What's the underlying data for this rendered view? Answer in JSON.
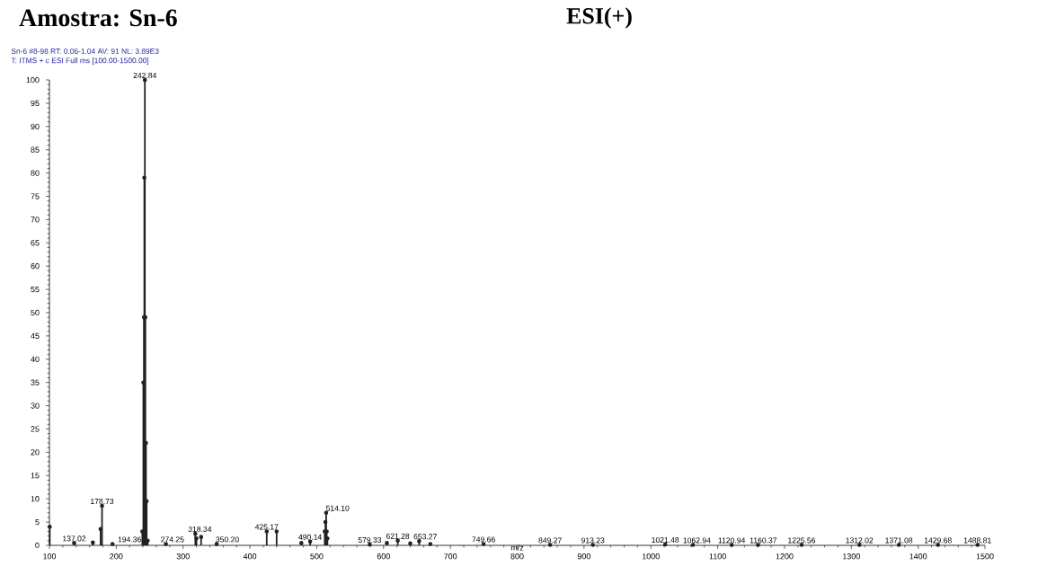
{
  "chart_data": {
    "type": "lollipop",
    "marker": "circle",
    "title": "Amostra: Sn-6",
    "subtitle": "ESI(+)",
    "xlabel": "m/z",
    "x": [
      100.5,
      137.02,
      165,
      176.5,
      178.73,
      194.36,
      239,
      240.5,
      241.5,
      242.0,
      242.84,
      243.5,
      244.5,
      245.5,
      247,
      274.25,
      318.34,
      320,
      327,
      350.2,
      425.17,
      440,
      477,
      490.14,
      512,
      513,
      514.1,
      515,
      516,
      579.33,
      605,
      621.28,
      640,
      653.27,
      670,
      749.66,
      849.27,
      913.23,
      1021.48,
      1062.94,
      1120.94,
      1160.37,
      1225.56,
      1312.02,
      1371.08,
      1429.68,
      1488.81
    ],
    "values": [
      4,
      0.5,
      0.6,
      3.5,
      8.5,
      0.3,
      3,
      35,
      49,
      79,
      100,
      49,
      22,
      9.5,
      1,
      0.3,
      2.5,
      1.5,
      1.8,
      0.3,
      3,
      3,
      0.5,
      0.8,
      3,
      5,
      7,
      3,
      1.5,
      0.2,
      0.5,
      1,
      0.4,
      0.9,
      0.3,
      0.3,
      0.1,
      0.1,
      0.2,
      0.1,
      0.1,
      0.1,
      0.1,
      0.1,
      0.1,
      0.1,
      0.1
    ],
    "color": "#222222",
    "xlim": [
      100,
      1500
    ],
    "xticks": [
      100,
      200,
      300,
      400,
      500,
      600,
      700,
      800,
      900,
      1000,
      1100,
      1200,
      1300,
      1400,
      1500
    ],
    "ylim": [
      0,
      100
    ],
    "yticks": [
      0,
      5,
      10,
      15,
      20,
      25,
      30,
      35,
      40,
      45,
      50,
      55,
      60,
      65,
      70,
      75,
      80,
      85,
      90,
      95,
      100
    ],
    "annotations": [
      "Sn-6 #8-98  RT: 0.06-1.04  AV: 91  NL: 3.89E3",
      "T: ITMS + c ESI Full ms [100.00-1500.00]",
      {
        "text": "137.02",
        "x": 137.02,
        "y": 0.5
      },
      {
        "text": "178.73",
        "x": 178.73,
        "y": 8.5
      },
      {
        "text": "194.36",
        "x": 194.36,
        "y": 0.3
      },
      {
        "text": "242.84",
        "x": 242.84,
        "y": 100
      },
      {
        "text": "274.25",
        "x": 274.25,
        "y": 0.3
      },
      {
        "text": "318.34",
        "x": 318.34,
        "y": 2.5
      },
      {
        "text": "350.20",
        "x": 350.2,
        "y": 0.3
      },
      {
        "text": "425.17",
        "x": 425.17,
        "y": 3
      },
      {
        "text": "490.14",
        "x": 490.14,
        "y": 0.8
      },
      {
        "text": "514.10",
        "x": 514.1,
        "y": 7
      },
      {
        "text": "579.33",
        "x": 579.33,
        "y": 0.2
      },
      {
        "text": "621.28",
        "x": 621.28,
        "y": 1
      },
      {
        "text": "653.27",
        "x": 653.27,
        "y": 0.9
      },
      {
        "text": "749.66",
        "x": 749.66,
        "y": 0.3
      },
      {
        "text": "849.27",
        "x": 849.27,
        "y": 0.1
      },
      {
        "text": "913.23",
        "x": 913.23,
        "y": 0.1
      },
      {
        "text": "1021.48",
        "x": 1021.48,
        "y": 0.2
      },
      {
        "text": "1062.94",
        "x": 1062.94,
        "y": 0.1
      },
      {
        "text": "1120.94",
        "x": 1120.94,
        "y": 0.1
      },
      {
        "text": "1160.37",
        "x": 1160.37,
        "y": 0.1
      },
      {
        "text": "1225.56",
        "x": 1225.56,
        "y": 0.1
      },
      {
        "text": "1312.02",
        "x": 1312.02,
        "y": 0.1
      },
      {
        "text": "1371.08",
        "x": 1371.08,
        "y": 0.1
      },
      {
        "text": "1429.68",
        "x": 1429.68,
        "y": 0.1
      },
      {
        "text": "1488.81",
        "x": 1488.81,
        "y": 0.1
      }
    ]
  }
}
